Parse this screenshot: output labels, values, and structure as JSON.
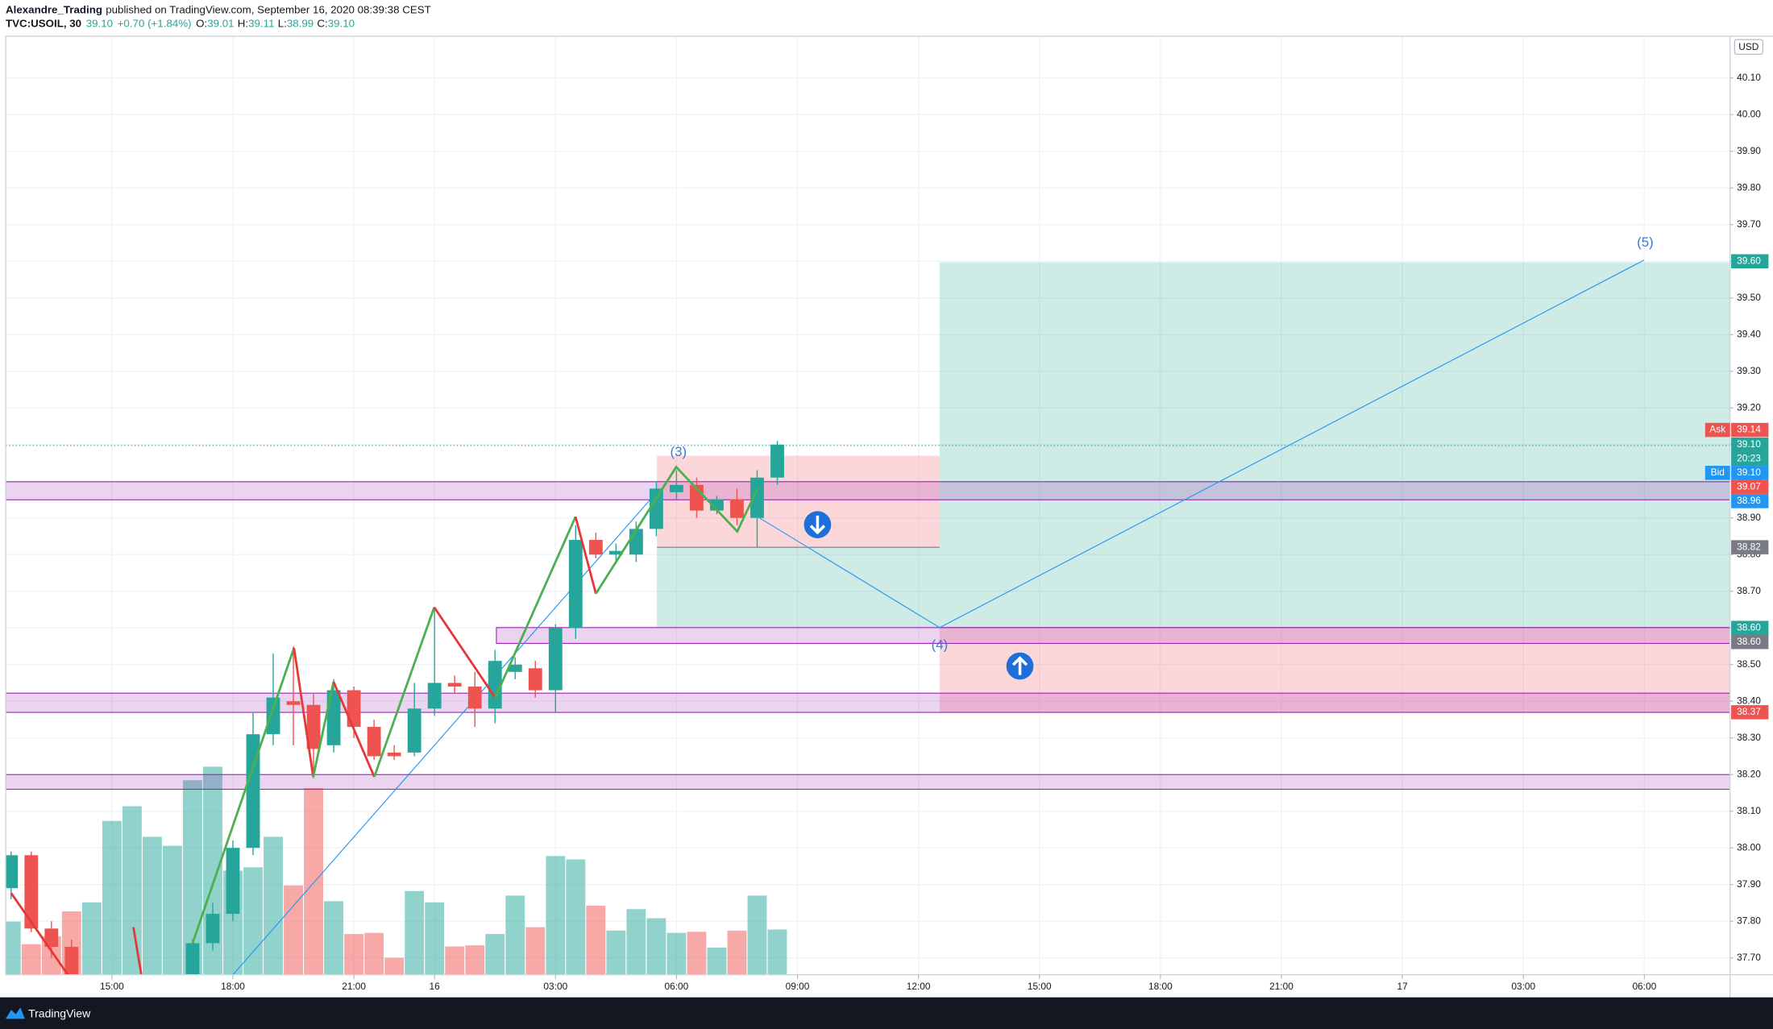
{
  "header": {
    "author": "Alexandre_Trading",
    "published": "published on TradingView.com, September 16, 2020 08:39:38 CEST",
    "symbol": "TVC:USOIL, 30",
    "last": "39.10",
    "change": "+0.70 (+1.84%)",
    "ohlc": [
      {
        "label": "O:",
        "value": "39.01"
      },
      {
        "label": "H:",
        "value": "39.11"
      },
      {
        "label": "L:",
        "value": "38.99"
      },
      {
        "label": "C:",
        "value": "39.10"
      }
    ]
  },
  "footer": {
    "brand": "TradingView"
  },
  "chart_data": {
    "type": "candlestick",
    "currency": "USD",
    "up_color": "#26a69a",
    "down_color": "#ef5350",
    "grid": true,
    "x": [
      -5,
      -4,
      -3,
      -2,
      -1,
      0,
      1,
      2,
      3,
      4,
      5,
      6,
      7,
      8,
      9,
      10,
      11,
      12,
      13,
      14,
      15,
      16,
      17,
      18,
      19,
      20,
      21,
      22,
      23,
      24,
      25,
      26,
      27,
      28,
      29,
      30,
      31,
      32,
      33
    ],
    "open": [
      37.89,
      37.98,
      37.78,
      37.73,
      null,
      null,
      null,
      null,
      null,
      37.62,
      37.74,
      37.82,
      38.0,
      38.31,
      38.4,
      38.39,
      38.28,
      38.43,
      38.33,
      38.26,
      38.26,
      38.38,
      38.45,
      38.44,
      38.38,
      38.48,
      38.49,
      38.43,
      38.6,
      38.84,
      38.8,
      38.8,
      38.87,
      38.97,
      38.99,
      38.92,
      38.95,
      38.9,
      39.01
    ],
    "high": [
      37.99,
      37.99,
      37.8,
      37.75,
      null,
      null,
      null,
      null,
      null,
      37.75,
      37.85,
      38.02,
      38.37,
      38.53,
      38.55,
      38.42,
      38.46,
      38.44,
      38.35,
      38.28,
      38.45,
      38.65,
      38.47,
      38.48,
      38.54,
      38.52,
      38.51,
      38.61,
      38.88,
      38.86,
      38.83,
      38.89,
      39.0,
      39.03,
      39.01,
      38.96,
      38.98,
      39.03,
      39.11
    ],
    "low": [
      37.86,
      37.77,
      37.7,
      37.62,
      null,
      null,
      null,
      null,
      null,
      37.6,
      37.72,
      37.8,
      37.98,
      38.28,
      38.28,
      38.19,
      38.26,
      38.3,
      38.24,
      38.24,
      38.25,
      38.36,
      38.42,
      38.33,
      38.34,
      38.46,
      38.41,
      38.37,
      38.57,
      38.79,
      38.78,
      38.78,
      38.85,
      38.95,
      38.9,
      38.91,
      38.88,
      38.82,
      38.99
    ],
    "close": [
      37.98,
      37.78,
      37.73,
      37.64,
      null,
      null,
      null,
      null,
      null,
      37.74,
      37.82,
      38.0,
      38.31,
      38.41,
      38.39,
      38.27,
      38.43,
      38.33,
      38.25,
      38.25,
      38.38,
      38.45,
      38.44,
      38.38,
      38.51,
      38.5,
      38.43,
      38.6,
      38.84,
      38.8,
      38.81,
      38.87,
      38.98,
      38.99,
      38.92,
      38.95,
      38.9,
      39.01,
      39.1
    ],
    "volume": [
      47,
      27,
      34,
      56,
      64,
      136,
      149,
      122,
      114,
      172,
      184,
      92,
      95,
      122,
      79,
      165,
      65,
      36,
      37,
      15,
      74,
      64,
      25,
      26,
      36,
      70,
      42,
      105,
      102,
      61,
      39,
      58,
      50,
      37,
      38,
      24,
      39,
      70,
      40
    ],
    "xlim": [
      -5.27,
      80.25
    ],
    "xticks": [
      {
        "value": 0,
        "label": "15:00"
      },
      {
        "value": 6,
        "label": "18:00"
      },
      {
        "value": 12,
        "label": "21:00"
      },
      16,
      {
        "value": 22,
        "label": "03:00"
      },
      {
        "value": 28,
        "label": "06:00"
      },
      {
        "value": 34,
        "label": "09:00"
      },
      {
        "value": 40,
        "label": "12:00"
      },
      {
        "value": 46,
        "label": "15:00"
      },
      {
        "value": 52,
        "label": "18:00"
      },
      {
        "value": 58,
        "label": "21:00"
      },
      {
        "value": 64,
        "label": "17"
      },
      {
        "value": 70,
        "label": "03:00"
      },
      {
        "value": 76,
        "label": "06:00"
      }
    ],
    "ylim": [
      37.654,
      40.214
    ],
    "yticks": [
      {
        "value": 37.7,
        "label": "37.70"
      },
      {
        "value": 37.8,
        "label": "37.80"
      },
      {
        "value": 37.9,
        "label": "37.90"
      },
      {
        "value": 38.0,
        "label": "38.00"
      },
      {
        "value": 38.1,
        "label": "38.10"
      },
      {
        "value": 38.2,
        "label": "38.20"
      },
      {
        "value": 38.3,
        "label": "38.30"
      },
      {
        "value": 38.4,
        "label": "38.40"
      },
      {
        "value": 38.5,
        "label": "38.50"
      },
      {
        "value": 38.6,
        "label": "38.60"
      },
      {
        "value": 38.7,
        "label": "38.70"
      },
      {
        "value": 38.8,
        "label": "38.80"
      },
      {
        "value": 38.9,
        "label": "38.90"
      },
      {
        "value": 39.0,
        "label": "39.00"
      },
      {
        "value": 39.1,
        "label": "39.10"
      },
      {
        "value": 39.2,
        "label": "39.20"
      },
      {
        "value": 39.3,
        "label": "39.30"
      },
      {
        "value": 39.4,
        "label": "39.40"
      },
      {
        "value": 39.5,
        "label": "39.50"
      },
      {
        "value": 39.6,
        "label": "39.60"
      },
      {
        "value": 39.7,
        "label": "39.70"
      },
      {
        "value": 39.8,
        "label": "39.80"
      },
      {
        "value": 39.9,
        "label": "39.90"
      },
      {
        "value": 40.0,
        "label": "40.00"
      },
      {
        "value": 40.1,
        "label": "40.10"
      }
    ],
    "price_tags": [
      {
        "label": "39.60",
        "value": 39.6,
        "color": "#26a69a"
      },
      {
        "tag": "Ask",
        "label": "39.14",
        "value": 39.14,
        "color": "#ef5350"
      },
      {
        "label": "39.10",
        "value": 39.1,
        "color": "#26a69a"
      },
      {
        "label": "20:23",
        "color": "#26a69a"
      },
      {
        "tag": "Bid",
        "label": "39.10",
        "value": 39.1,
        "color": "#2196f3"
      },
      {
        "label": "39.07",
        "value": 39.07,
        "color": "#ef5350"
      },
      {
        "label": "38.96",
        "value": 38.96,
        "color": "#2196f3"
      },
      {
        "label": "38.82",
        "value": 38.82,
        "color": "#787b86"
      },
      {
        "label": "38.60",
        "value": 38.6,
        "color": "#26a69a"
      },
      {
        "label": "38.60",
        "value": 38.6,
        "color": "#787b86"
      },
      {
        "label": "38.37",
        "value": 38.37,
        "color": "#ef5350"
      }
    ],
    "waves": [
      "(3)",
      "(4)",
      "(5)"
    ]
  }
}
